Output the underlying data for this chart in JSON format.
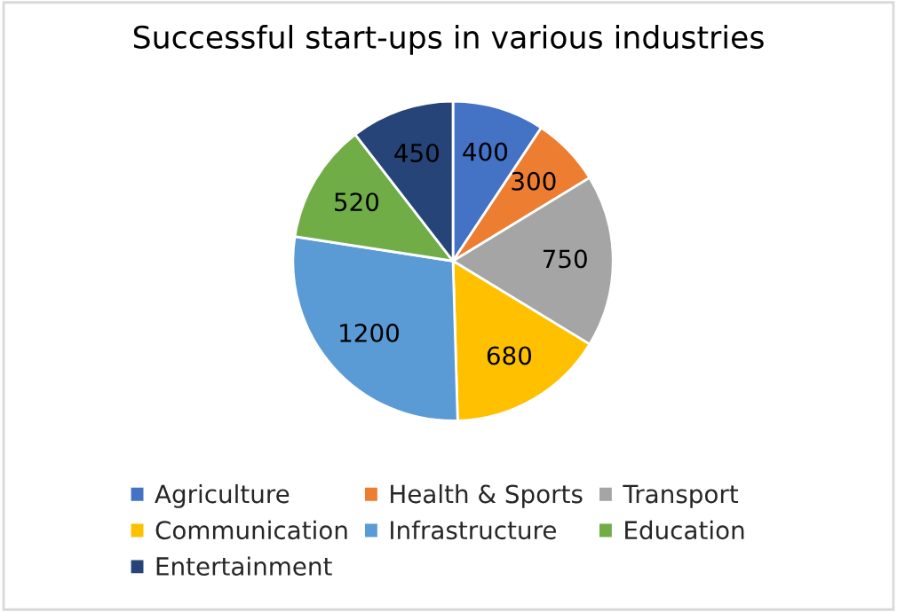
{
  "chart_data": {
    "type": "pie",
    "title": "Successful start-ups in various industries",
    "categories": [
      "Agriculture",
      "Health & Sports",
      "Transport",
      "Communication",
      "Infrastructure",
      "Education",
      "Entertainment"
    ],
    "values": [
      400,
      300,
      750,
      680,
      1200,
      520,
      450
    ],
    "colors": [
      "#4472c4",
      "#ed7d31",
      "#a5a5a5",
      "#ffc000",
      "#5b9bd5",
      "#70ad47",
      "#264478"
    ],
    "data_labels": true,
    "legend": "bottom"
  }
}
